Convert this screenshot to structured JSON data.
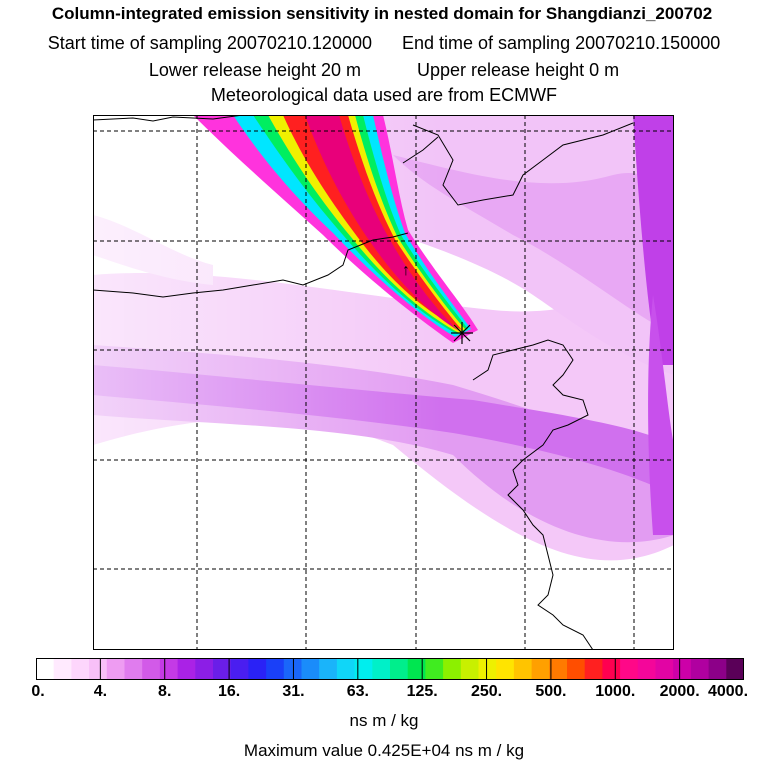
{
  "title": {
    "line1": "Column-integrated emission sensitivity in nested domain for Shangdianzi_200702",
    "start_label": "Start time of sampling 20070210.120000",
    "end_label": "End time of sampling 20070210.150000",
    "lower_label": "Lower release height   20 m",
    "upper_label": "Upper release height    0 m",
    "met_label": "Meteorological data used are from ECMWF"
  },
  "colorbar": {
    "colors": [
      "#ffffff",
      "#ffeafe",
      "#fdd6fc",
      "#f8c0f8",
      "#ee9cf2",
      "#e07cee",
      "#d25ae8",
      "#c43ae6",
      "#aa22e6",
      "#8c1ee6",
      "#6a1ee8",
      "#4a1ef0",
      "#2a22f6",
      "#1a40f8",
      "#1a66fa",
      "#1a8cfa",
      "#1ab4fa",
      "#10d6f8",
      "#00eeee",
      "#00f0c8",
      "#00ee8c",
      "#00e650",
      "#40ec20",
      "#8cf000",
      "#c8f000",
      "#eef000",
      "#ffe400",
      "#ffc400",
      "#ffa000",
      "#ff7a00",
      "#ff4e00",
      "#ff2020",
      "#ff0050",
      "#ff0888",
      "#f4069a",
      "#e204a4",
      "#cc00a8",
      "#b000a0",
      "#8c0088",
      "#5a0058"
    ],
    "ticks": [
      "0.",
      "4.",
      "8.",
      "16.",
      "31.",
      "63.",
      "125.",
      "250.",
      "500.",
      "1000.",
      "2000.",
      "4000."
    ],
    "unit": "ns m / kg"
  },
  "max_value_text": "Maximum value  0.425E+04 ns m / kg",
  "map": {
    "receptor_marker": "*",
    "plume_colors": [
      "#ff00cc",
      "#00e6ff",
      "#00ee60",
      "#f0f000",
      "#ff2020"
    ],
    "background_purple": "#cc55ee",
    "grid_color": "#000000"
  }
}
